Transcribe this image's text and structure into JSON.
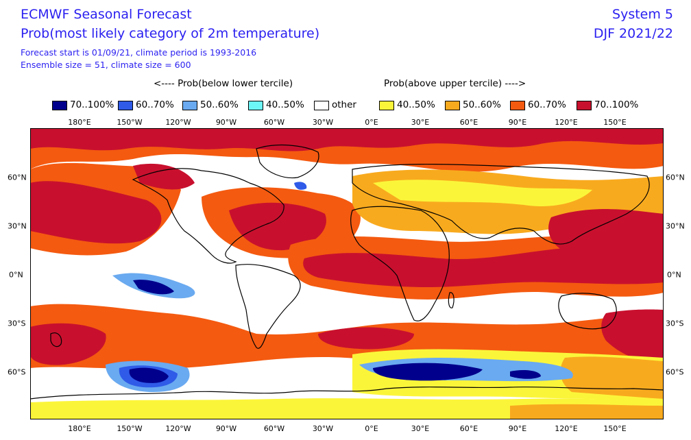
{
  "header": {
    "title": "ECMWF Seasonal Forecast",
    "subtitle": "Prob(most likely category of 2m temperature)",
    "forecast_line": "Forecast start is 01/09/21, climate period is 1993-2016",
    "ensemble_line": "Ensemble size = 51, climate size = 600",
    "system": "System 5",
    "season": "DJF 2021/22"
  },
  "legend": {
    "left_caption": "<---- Prob(below lower tercile)",
    "right_caption": "Prob(above upper tercile) ---->",
    "items": [
      {
        "label": "70..100%",
        "color": "#00008c"
      },
      {
        "label": "60..70%",
        "color": "#2f5be8"
      },
      {
        "label": "50..60%",
        "color": "#6aaaf0"
      },
      {
        "label": "40..50%",
        "color": "#6cf6f6"
      },
      {
        "label": "other",
        "color": "#ffffff"
      },
      {
        "label": "40..50%",
        "color": "#fbf53a"
      },
      {
        "label": "50..60%",
        "color": "#f8aa1e"
      },
      {
        "label": "60..70%",
        "color": "#f45a10"
      },
      {
        "label": "70..100%",
        "color": "#c8102e"
      }
    ]
  },
  "axes": {
    "lon_labels": [
      "180°E",
      "150°W",
      "120°W",
      "90°W",
      "60°W",
      "30°W",
      "0°E",
      "30°E",
      "60°E",
      "90°E",
      "120°E",
      "150°E"
    ],
    "lat_labels": [
      "60°N",
      "30°N",
      "0°N",
      "30°S",
      "60°S"
    ]
  }
}
